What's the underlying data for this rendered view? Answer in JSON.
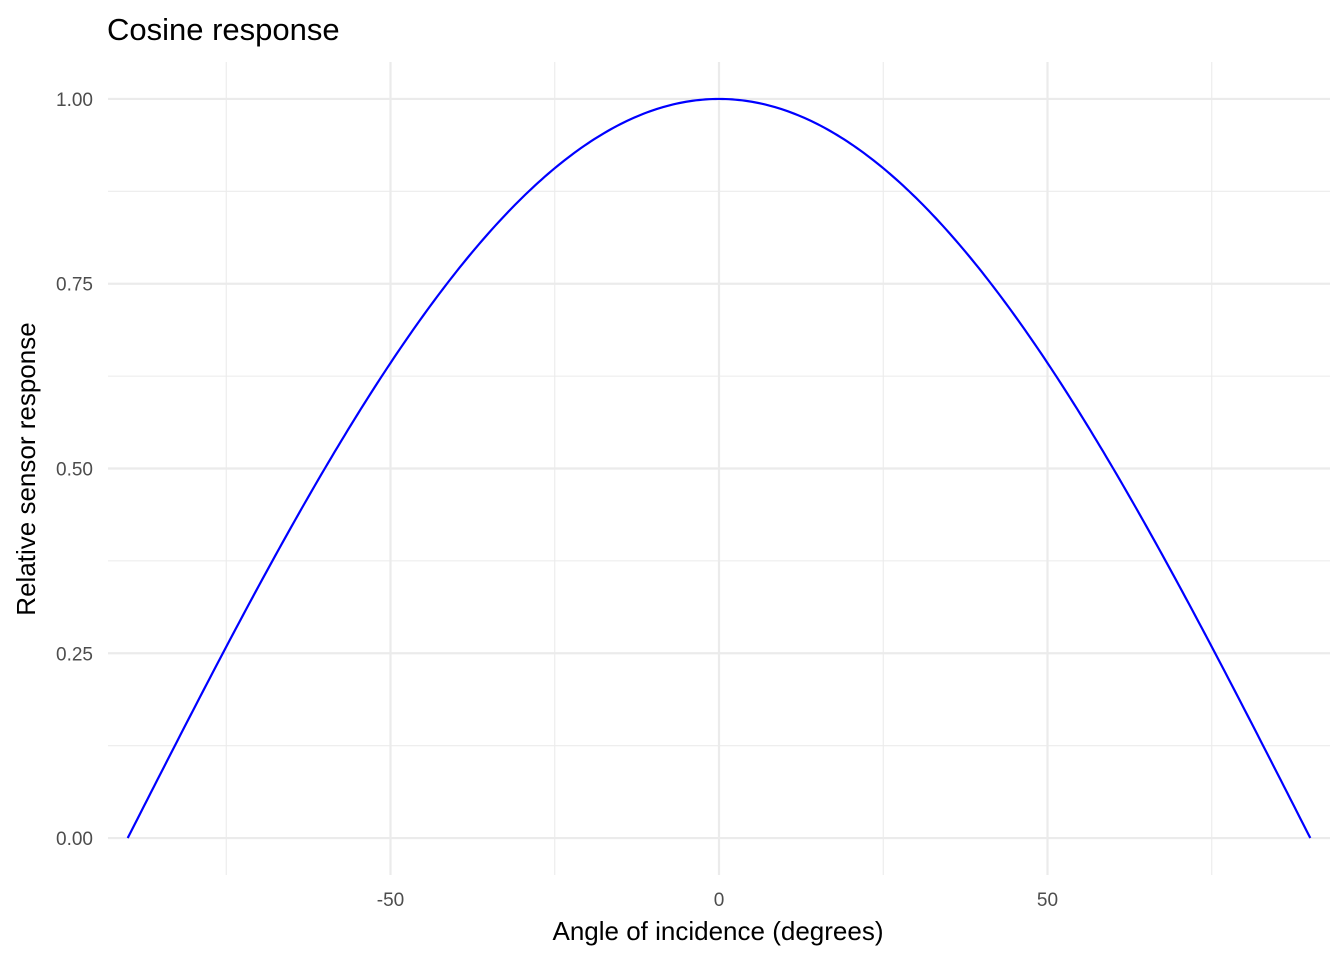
{
  "chart_data": {
    "type": "line",
    "title": "Cosine response",
    "xlabel": "Angle of incidence (degrees)",
    "ylabel": "Relative sensor response",
    "xlim": [
      -93,
      93
    ],
    "ylim": [
      -0.05,
      1.05
    ],
    "x_ticks": [
      -50,
      0,
      50
    ],
    "x_tick_labels": [
      "-50",
      "0",
      "50"
    ],
    "x_minor_ticks": [
      -75,
      -25,
      25,
      75
    ],
    "y_ticks": [
      0,
      0.25,
      0.5,
      0.75,
      1
    ],
    "y_tick_labels": [
      "0.00",
      "0.25",
      "0.50",
      "0.75",
      "1.00"
    ],
    "y_minor_ticks": [
      0.125,
      0.375,
      0.625,
      0.875
    ],
    "grid": true,
    "legend": "none",
    "series": [
      {
        "color": "#0000ff",
        "function": "cos(x degrees)",
        "x": [
          -90,
          -85,
          -80,
          -75,
          -70,
          -65,
          -60,
          -55,
          -50,
          -45,
          -40,
          -35,
          -30,
          -25,
          -20,
          -15,
          -10,
          -5,
          0,
          5,
          10,
          15,
          20,
          25,
          30,
          35,
          40,
          45,
          50,
          55,
          60,
          65,
          70,
          75,
          80,
          85,
          90
        ],
        "y": [
          0,
          0.087,
          0.174,
          0.259,
          0.342,
          0.423,
          0.5,
          0.574,
          0.643,
          0.707,
          0.766,
          0.819,
          0.866,
          0.906,
          0.94,
          0.966,
          0.985,
          0.996,
          1,
          0.996,
          0.985,
          0.966,
          0.94,
          0.906,
          0.866,
          0.819,
          0.766,
          0.707,
          0.643,
          0.574,
          0.5,
          0.423,
          0.342,
          0.259,
          0.174,
          0.087,
          0
        ]
      }
    ]
  }
}
